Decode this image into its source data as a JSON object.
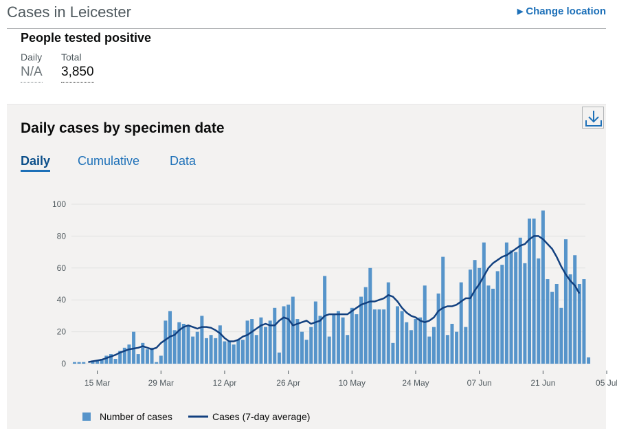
{
  "header": {
    "title": "Cases in Leicester",
    "change_location": "Change location"
  },
  "summary": {
    "title": "People tested positive",
    "daily_label": "Daily",
    "daily_value": "N/A",
    "total_label": "Total",
    "total_value": "3,850"
  },
  "card": {
    "title": "Daily cases by specimen date",
    "tabs": [
      {
        "label": "Daily",
        "active": true
      },
      {
        "label": "Cumulative",
        "active": false
      },
      {
        "label": "Data",
        "active": false
      }
    ],
    "download_icon": "download-icon"
  },
  "colors": {
    "bar": "#5694ca",
    "line": "#12407f",
    "link": "#1d70b8",
    "grid": "#e1e1e1"
  },
  "chart_data": {
    "type": "bar",
    "title": "",
    "xlabel": "",
    "ylabel": "",
    "ylim": [
      0,
      100
    ],
    "yticks": [
      0,
      20,
      40,
      60,
      80,
      100
    ],
    "start_date": "2020-03-10",
    "xtick_labels": [
      {
        "date": "2020-03-15",
        "label": "15 Mar"
      },
      {
        "date": "2020-03-29",
        "label": "29 Mar"
      },
      {
        "date": "2020-04-12",
        "label": "12 Apr"
      },
      {
        "date": "2020-04-26",
        "label": "26 Apr"
      },
      {
        "date": "2020-05-10",
        "label": "10 May"
      },
      {
        "date": "2020-05-24",
        "label": "24 May"
      },
      {
        "date": "2020-06-07",
        "label": "07 Jun"
      },
      {
        "date": "2020-06-21",
        "label": "21 Jun"
      },
      {
        "date": "2020-07-05",
        "label": "05 Jul"
      }
    ],
    "series": [
      {
        "name": "Number of cases",
        "kind": "bar",
        "values": [
          1,
          1,
          1,
          0,
          2,
          2,
          3,
          5,
          6,
          3,
          8,
          10,
          12,
          20,
          6,
          13,
          9,
          10,
          1,
          5,
          27,
          33,
          21,
          26,
          25,
          24,
          17,
          20,
          30,
          16,
          18,
          16,
          24,
          14,
          14,
          12,
          15,
          15,
          27,
          28,
          18,
          29,
          23,
          27,
          35,
          7,
          36,
          37,
          42,
          28,
          20,
          15,
          23,
          39,
          30,
          55,
          17,
          31,
          33,
          29,
          18,
          35,
          31,
          42,
          48,
          60,
          34,
          34,
          34,
          51,
          13,
          36,
          33,
          26,
          21,
          28,
          29,
          49,
          17,
          23,
          44,
          67,
          18,
          25,
          20,
          51,
          23,
          59,
          65,
          60,
          76,
          49,
          47,
          58,
          62,
          76,
          71,
          70,
          79,
          63,
          91,
          91,
          66,
          96,
          53,
          45,
          50,
          35,
          78,
          56,
          68,
          50,
          53,
          4
        ],
        "color": "#5694ca"
      },
      {
        "name": "Cases (7-day average)",
        "kind": "line",
        "start_index": 3,
        "end_index": 112,
        "values": [
          1,
          1.5,
          2,
          2.5,
          3.5,
          4.5,
          5.5,
          7,
          8,
          9,
          9.5,
          10,
          11,
          10,
          9,
          10,
          13,
          15,
          17,
          18,
          21,
          23,
          24,
          23,
          22,
          23,
          23,
          22.5,
          21,
          19,
          16,
          14,
          14,
          15,
          17,
          18,
          20,
          22,
          24,
          25,
          24,
          24,
          27,
          29,
          28,
          24,
          25,
          26,
          27,
          25,
          26,
          27,
          30,
          31,
          31,
          31,
          31,
          31,
          33,
          35,
          37,
          38,
          39,
          39,
          40,
          41,
          43,
          42,
          39,
          35,
          32,
          30,
          29,
          27,
          26,
          27,
          29,
          33,
          35,
          36,
          36,
          37,
          39,
          41,
          41,
          46,
          50,
          55,
          60,
          63,
          65,
          67,
          68,
          70,
          72,
          74,
          75,
          78,
          80,
          80,
          78,
          75,
          72,
          67,
          61,
          56,
          52,
          49,
          44
        ],
        "color": "#12407f"
      }
    ],
    "legend": [
      {
        "label": "Number of cases",
        "kind": "bar"
      },
      {
        "label": "Cases (7-day average)",
        "kind": "line"
      }
    ],
    "legend_position": "bottom",
    "grid": true
  }
}
